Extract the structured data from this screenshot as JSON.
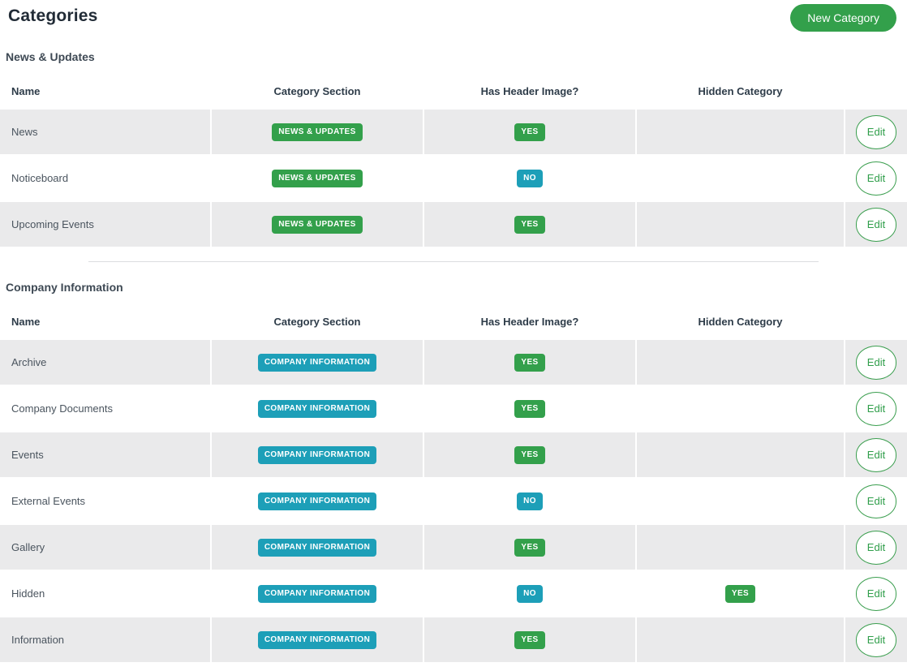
{
  "header": {
    "title": "Categories",
    "new_category_label": "New Category"
  },
  "table_columns": [
    "Name",
    "Category Section",
    "Has Header Image?",
    "Hidden Category"
  ],
  "edit_label": "Edit",
  "colors": {
    "green": "#33a04b",
    "teal": "#1d9fb8",
    "row_stripe": "#eaeaeb"
  },
  "sections": [
    {
      "title": "News & Updates",
      "rows": [
        {
          "name": "News",
          "category_section": {
            "label": "NEWS & UPDATES",
            "color": "green"
          },
          "has_header_image": {
            "label": "YES",
            "color": "green"
          },
          "hidden_category": null
        },
        {
          "name": "Noticeboard",
          "category_section": {
            "label": "NEWS & UPDATES",
            "color": "green"
          },
          "has_header_image": {
            "label": "NO",
            "color": "teal"
          },
          "hidden_category": null
        },
        {
          "name": "Upcoming Events",
          "category_section": {
            "label": "NEWS & UPDATES",
            "color": "green"
          },
          "has_header_image": {
            "label": "YES",
            "color": "green"
          },
          "hidden_category": null
        }
      ]
    },
    {
      "title": "Company Information",
      "rows": [
        {
          "name": "Archive",
          "category_section": {
            "label": "COMPANY INFORMATION",
            "color": "teal"
          },
          "has_header_image": {
            "label": "YES",
            "color": "green"
          },
          "hidden_category": null
        },
        {
          "name": "Company Documents",
          "category_section": {
            "label": "COMPANY INFORMATION",
            "color": "teal"
          },
          "has_header_image": {
            "label": "YES",
            "color": "green"
          },
          "hidden_category": null
        },
        {
          "name": "Events",
          "category_section": {
            "label": "COMPANY INFORMATION",
            "color": "teal"
          },
          "has_header_image": {
            "label": "YES",
            "color": "green"
          },
          "hidden_category": null
        },
        {
          "name": "External Events",
          "category_section": {
            "label": "COMPANY INFORMATION",
            "color": "teal"
          },
          "has_header_image": {
            "label": "NO",
            "color": "teal"
          },
          "hidden_category": null
        },
        {
          "name": "Gallery",
          "category_section": {
            "label": "COMPANY INFORMATION",
            "color": "teal"
          },
          "has_header_image": {
            "label": "YES",
            "color": "green"
          },
          "hidden_category": null
        },
        {
          "name": "Hidden",
          "category_section": {
            "label": "COMPANY INFORMATION",
            "color": "teal"
          },
          "has_header_image": {
            "label": "NO",
            "color": "teal"
          },
          "hidden_category": {
            "label": "YES",
            "color": "green"
          }
        },
        {
          "name": "Information",
          "category_section": {
            "label": "COMPANY INFORMATION",
            "color": "teal"
          },
          "has_header_image": {
            "label": "YES",
            "color": "green"
          },
          "hidden_category": null
        }
      ]
    }
  ]
}
